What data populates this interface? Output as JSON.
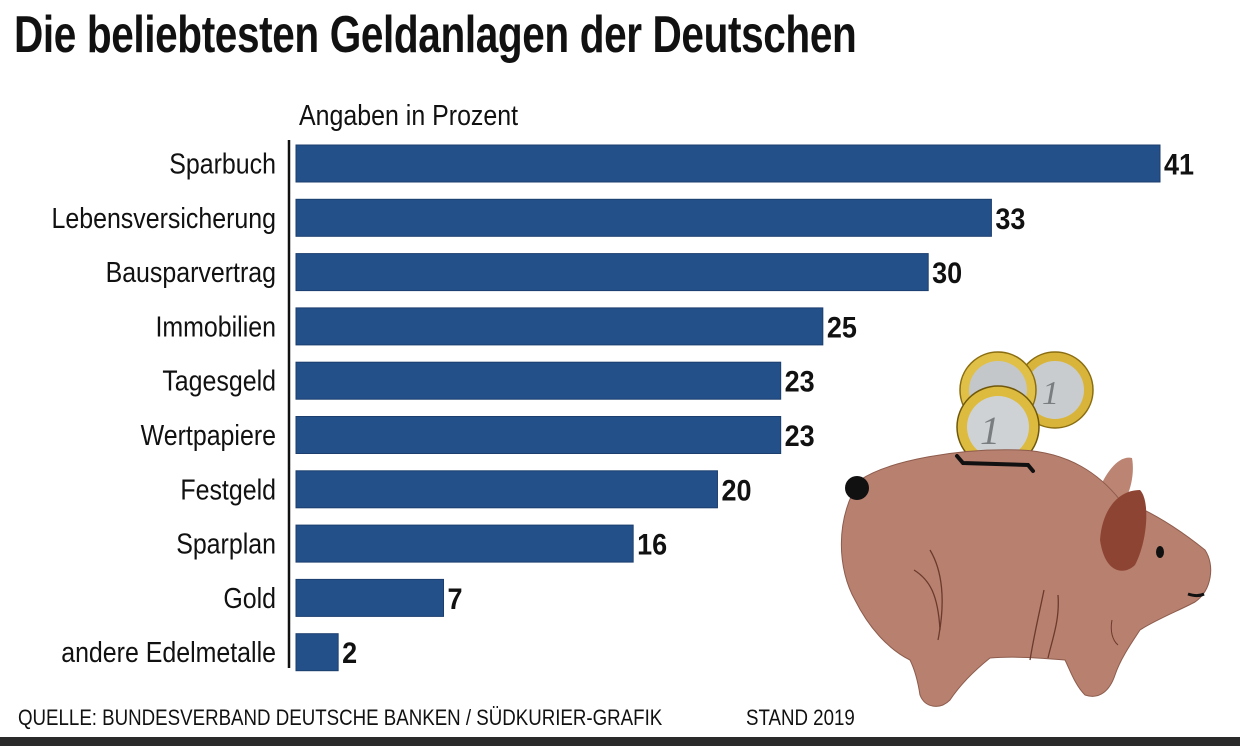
{
  "header": {
    "title": "Die beliebtesten Geldanlagen der Deutschen",
    "subtitle": "Angaben in Prozent"
  },
  "footer": {
    "source": "QUELLE: BUNDESVERBAND DEUTSCHE BANKEN / SÜDKURIER-GRAFIK",
    "stand": "STAND 2019"
  },
  "colors": {
    "bar": "#24508a",
    "bar_edge": "#1b3e6e",
    "axis": "#111111"
  },
  "illustration": {
    "subject": "piggy-bank-with-euro-coins"
  },
  "chart_data": {
    "type": "bar",
    "orientation": "horizontal",
    "title": "Die beliebtesten Geldanlagen der Deutschen",
    "subtitle": "Angaben in Prozent",
    "xlabel": "",
    "ylabel": "",
    "unit": "Prozent",
    "xlim": [
      0,
      41
    ],
    "grid": false,
    "legend": "none",
    "categories": [
      "Sparbuch",
      "Lebensversicherung",
      "Bausparvertrag",
      "Immobilien",
      "Tagesgeld",
      "Wertpapiere",
      "Festgeld",
      "Sparplan",
      "Gold",
      "andere Edelmetalle"
    ],
    "values": [
      41,
      33,
      30,
      25,
      23,
      23,
      20,
      16,
      7,
      2
    ],
    "data_labels": [
      "41",
      "33",
      "30",
      "25",
      "23",
      "23",
      "20",
      "16",
      "7",
      "2"
    ]
  }
}
